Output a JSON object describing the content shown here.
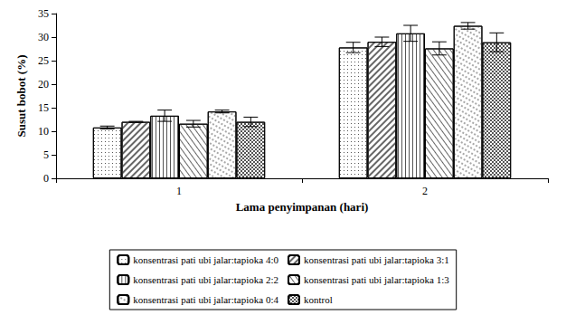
{
  "chart_data": {
    "type": "bar",
    "x_label": "Lama penyimpanan (hari)",
    "y_label": "Susut bobot (%)",
    "categories": [
      "1",
      "2"
    ],
    "series": [
      {
        "name": "konsentrasi pati ubi jalar:tapioka 4:0",
        "color": "#ffffff",
        "values": [
          10.8,
          27.8
        ],
        "errors": [
          0.3,
          1.1
        ]
      },
      {
        "name": "konsentrasi pati ubi jalar:tapioka 3:1",
        "color": "#ffffff",
        "values": [
          12.0,
          29.0
        ],
        "errors": [
          0.1,
          1.0
        ]
      },
      {
        "name": "konsentrasi pati ubi jalar:tapioka 2:2",
        "color": "#ffffff",
        "values": [
          13.3,
          30.8
        ],
        "errors": [
          1.2,
          1.7
        ]
      },
      {
        "name": "konsentrasi pati ubi jalar:tapioka 1:3",
        "color": "#ffffff",
        "values": [
          11.6,
          27.6
        ],
        "errors": [
          0.7,
          1.4
        ]
      },
      {
        "name": "konsentrasi pati ubi jalar:tapioka 0:4",
        "color": "#ffffff",
        "values": [
          14.2,
          32.4
        ],
        "errors": [
          0.3,
          0.7
        ]
      },
      {
        "name": "kontrol",
        "color": "#ffffff",
        "values": [
          12.0,
          28.9
        ],
        "errors": [
          1.0,
          2.0
        ]
      }
    ],
    "ylim": [
      0,
      35
    ],
    "yticks": [
      0,
      5,
      10,
      15,
      20,
      25,
      30,
      35
    ],
    "grid": false,
    "legend": "bottom"
  }
}
